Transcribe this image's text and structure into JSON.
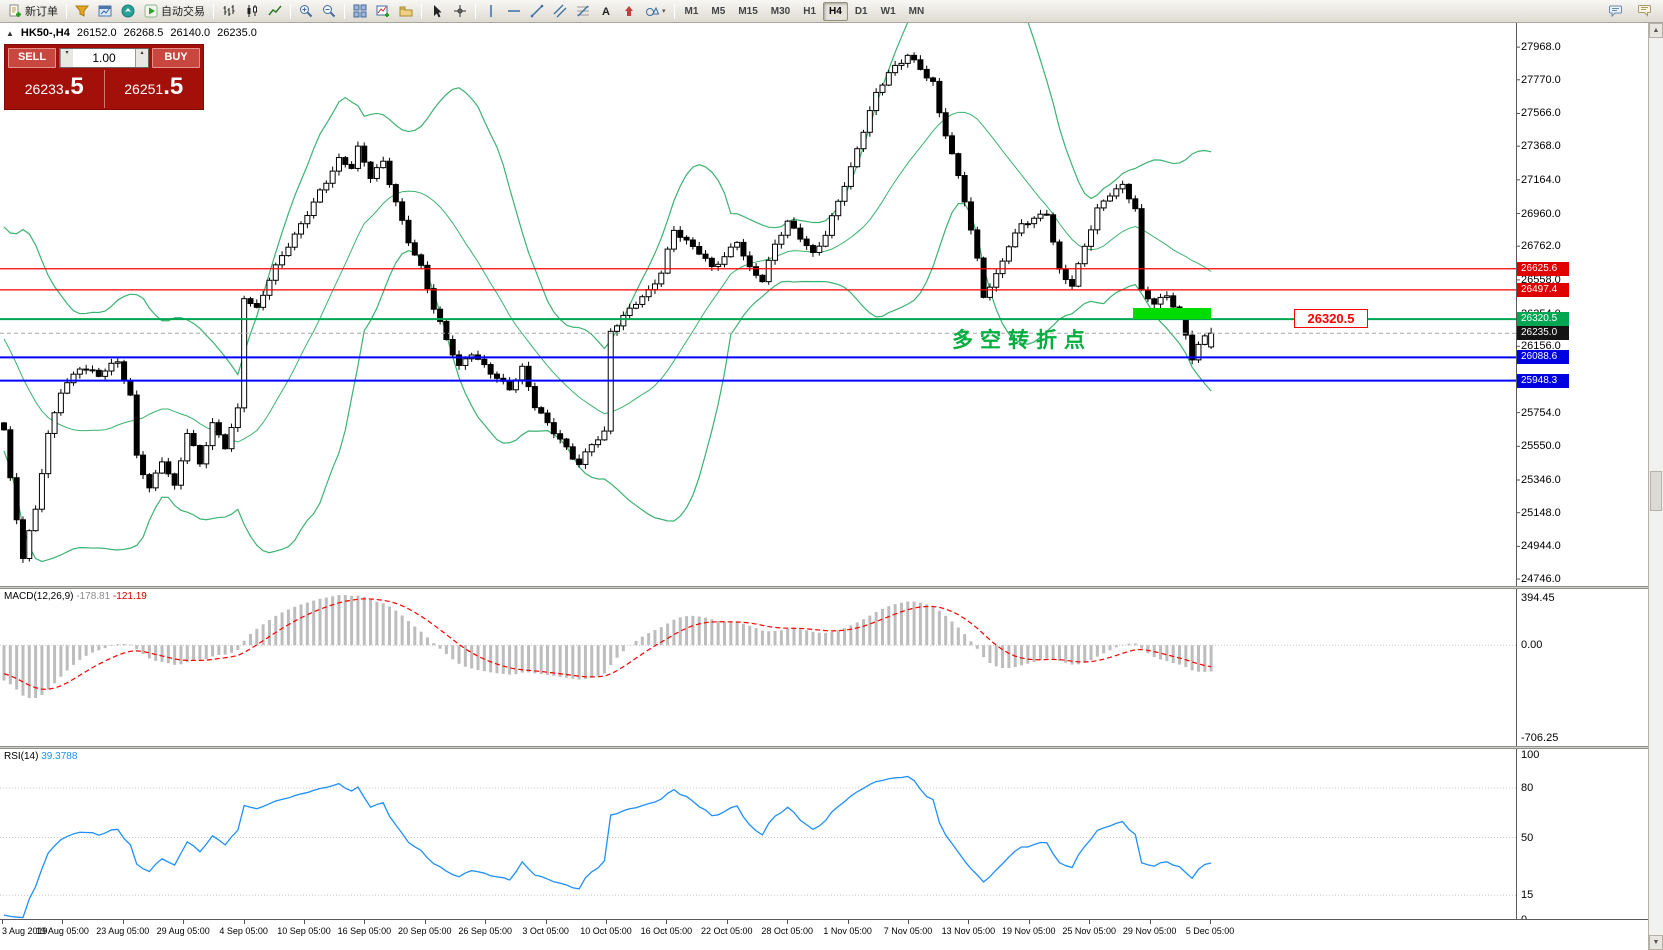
{
  "toolbar": {
    "new_order": "新订单",
    "auto_trading": "自动交易",
    "timeframes": [
      "M1",
      "M5",
      "M15",
      "M30",
      "H1",
      "H4",
      "D1",
      "W1",
      "MN"
    ],
    "active_timeframe": "H4"
  },
  "chart_header": {
    "symbol_period": "HK50-,H4",
    "open": "26152.0",
    "high": "26268.5",
    "low": "26140.0",
    "close": "26235.0"
  },
  "one_click": {
    "sell_label": "SELL",
    "buy_label": "BUY",
    "volume": "1.00",
    "sell_price_main": "26233",
    "sell_price_pips": ".5",
    "buy_price_main": "26251",
    "buy_price_pips": ".5"
  },
  "annotations": {
    "note_text": "多空转折点",
    "price_callout": "26320.5"
  },
  "macd_panel": {
    "name": "MACD(12,26,9)",
    "value_macd": "-178.81",
    "value_signal": "-121.19",
    "scale_top": "394.45",
    "scale_zero": "0.00",
    "scale_bottom": "-706.25"
  },
  "rsi_panel": {
    "name": "RSI(14)",
    "value": "39.3788",
    "scale_labels": [
      100,
      80,
      50,
      15,
      0
    ],
    "levels": [
      80,
      50,
      15
    ]
  },
  "chart_data": {
    "type": "candlestick",
    "symbol": "HK50-",
    "timeframe": "H4",
    "last_ohlc": {
      "open": 26152.0,
      "high": 26268.5,
      "low": 26140.0,
      "close": 26235.0
    },
    "ylim": [
      24704,
      28114
    ],
    "y_axis_labels": [
      "27968.0",
      "27770.0",
      "27566.0",
      "27368.0",
      "27164.0",
      "26960.0",
      "26762.0",
      "26558.0",
      "26354.0",
      "26156.0",
      "25952.0",
      "25754.0",
      "25550.0",
      "25346.0",
      "25148.0",
      "24944.0",
      "24746.0"
    ],
    "x_axis_labels": [
      "3 Aug 2019",
      "19 Aug 05:00",
      "23 Aug 05:00",
      "29 Aug 05:00",
      "4 Sep 05:00",
      "10 Sep 05:00",
      "16 Sep 05:00",
      "20 Sep 05:00",
      "26 Sep 05:00",
      "3 Oct 05:00",
      "10 Oct 05:00",
      "16 Oct 05:00",
      "22 Oct 05:00",
      "28 Oct 05:00",
      "1 Nov 05:00",
      "7 Nov 05:00",
      "13 Nov 05:00",
      "19 Nov 05:00",
      "25 Nov 05:00",
      "29 Nov 05:00",
      "5 Dec 05:00"
    ],
    "candles_count": 192,
    "close_path": [
      [
        0,
        25650
      ],
      [
        1,
        25340
      ],
      [
        3,
        24860
      ],
      [
        5,
        25160
      ],
      [
        7,
        25620
      ],
      [
        9,
        25900
      ],
      [
        12,
        26040
      ],
      [
        15,
        25970
      ],
      [
        18,
        26050
      ],
      [
        20,
        25850
      ],
      [
        21,
        25500
      ],
      [
        23,
        25310
      ],
      [
        25,
        25480
      ],
      [
        27,
        25300
      ],
      [
        29,
        25620
      ],
      [
        31,
        25430
      ],
      [
        33,
        25680
      ],
      [
        35,
        25560
      ],
      [
        37,
        25790
      ],
      [
        38,
        26470
      ],
      [
        40,
        26380
      ],
      [
        42,
        26550
      ],
      [
        44,
        26690
      ],
      [
        46,
        26820
      ],
      [
        48,
        26970
      ],
      [
        50,
        27110
      ],
      [
        53,
        27290
      ],
      [
        55,
        27230
      ],
      [
        56,
        27340
      ],
      [
        58,
        27170
      ],
      [
        60,
        27270
      ],
      [
        62,
        27040
      ],
      [
        64,
        26810
      ],
      [
        66,
        26640
      ],
      [
        68,
        26380
      ],
      [
        70,
        26180
      ],
      [
        72,
        26020
      ],
      [
        74,
        26120
      ],
      [
        76,
        26050
      ],
      [
        78,
        25980
      ],
      [
        80,
        25900
      ],
      [
        82,
        26010
      ],
      [
        84,
        25780
      ],
      [
        86,
        25680
      ],
      [
        88,
        25600
      ],
      [
        90,
        25500
      ],
      [
        91,
        25460
      ],
      [
        93,
        25570
      ],
      [
        95,
        25620
      ],
      [
        96,
        26230
      ],
      [
        98,
        26320
      ],
      [
        100,
        26420
      ],
      [
        102,
        26500
      ],
      [
        104,
        26620
      ],
      [
        106,
        26870
      ],
      [
        108,
        26780
      ],
      [
        110,
        26710
      ],
      [
        112,
        26620
      ],
      [
        114,
        26700
      ],
      [
        116,
        26810
      ],
      [
        118,
        26640
      ],
      [
        120,
        26560
      ],
      [
        122,
        26760
      ],
      [
        124,
        26890
      ],
      [
        126,
        26810
      ],
      [
        128,
        26720
      ],
      [
        130,
        26850
      ],
      [
        132,
        27050
      ],
      [
        134,
        27230
      ],
      [
        136,
        27450
      ],
      [
        138,
        27670
      ],
      [
        140,
        27810
      ],
      [
        142,
        27890
      ],
      [
        143,
        27940
      ],
      [
        145,
        27850
      ],
      [
        147,
        27750
      ],
      [
        148,
        27560
      ],
      [
        150,
        27300
      ],
      [
        152,
        27030
      ],
      [
        154,
        26680
      ],
      [
        155,
        26470
      ],
      [
        157,
        26600
      ],
      [
        159,
        26780
      ],
      [
        161,
        26890
      ],
      [
        163,
        26910
      ],
      [
        165,
        26950
      ],
      [
        167,
        26610
      ],
      [
        169,
        26540
      ],
      [
        171,
        26780
      ],
      [
        173,
        26990
      ],
      [
        175,
        27070
      ],
      [
        177,
        27110
      ],
      [
        179,
        26980
      ],
      [
        180,
        26480
      ],
      [
        182,
        26430
      ],
      [
        184,
        26480
      ],
      [
        186,
        26360
      ],
      [
        188,
        26080
      ],
      [
        189,
        26150
      ],
      [
        191,
        26235
      ]
    ],
    "hlines": [
      {
        "price": 26625.6,
        "label": "26625.6",
        "line_color": "#FF0000",
        "tag_color": "#E00000",
        "width": 1.2,
        "dash": ""
      },
      {
        "price": 26497.4,
        "label": "26497.4",
        "line_color": "#FF0000",
        "tag_color": "#E00000",
        "width": 1.2,
        "dash": ""
      },
      {
        "price": 26320.5,
        "label": "26320.5",
        "line_color": "#00A651",
        "tag_color": "#00A651",
        "width": 2,
        "dash": ""
      },
      {
        "price": 26235.0,
        "label": "26235.0",
        "line_color": "#A8A8A8",
        "tag_color": "#141414",
        "width": 1,
        "dash": "4 3"
      },
      {
        "price": 26088.6,
        "label": "26088.6",
        "line_color": "#0000FF",
        "tag_color": "#0000E0",
        "width": 2,
        "dash": ""
      },
      {
        "price": 25948.3,
        "label": "25948.3",
        "line_color": "#0000FF",
        "tag_color": "#0000E0",
        "width": 2,
        "dash": ""
      }
    ],
    "highlight_rect_color": "#00DC00",
    "indicators": {
      "bollinger": {
        "period": 20,
        "deviation": 2,
        "color": "#3CB371"
      },
      "macd": {
        "fast": 12,
        "slow": 26,
        "signal": 9,
        "current": [
          -178.81,
          -121.19
        ],
        "histogram_color": "#BDBDBD",
        "signal_color": "#FF0000",
        "scale": [
          394.45,
          -706.25
        ]
      },
      "rsi": {
        "period": 14,
        "current": 39.3788,
        "color": "#1E90FF"
      }
    }
  }
}
